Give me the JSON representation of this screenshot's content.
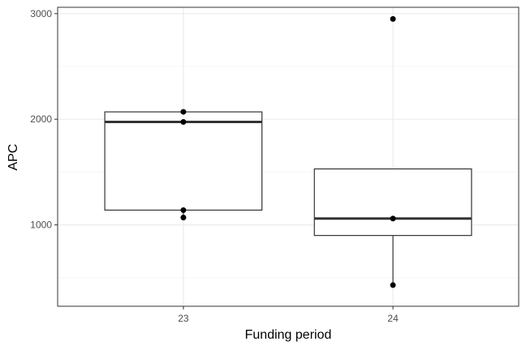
{
  "chart_data": {
    "type": "boxplot",
    "title": "",
    "xlabel": "Funding period",
    "ylabel": "APC",
    "categories": [
      "23",
      "24"
    ],
    "boxes": [
      {
        "category": "23",
        "min": 1070,
        "q1": 1140,
        "median": 1975,
        "q3": 2070,
        "max": 2070
      },
      {
        "category": "24",
        "min": 430,
        "q1": 900,
        "median": 1060,
        "q3": 1530,
        "max": 1530,
        "outliers": [
          2950
        ]
      }
    ],
    "points": [
      {
        "category": "23",
        "y": 2070
      },
      {
        "category": "23",
        "y": 1975
      },
      {
        "category": "23",
        "y": 1140
      },
      {
        "category": "23",
        "y": 1070
      },
      {
        "category": "24",
        "y": 2950
      },
      {
        "category": "24",
        "y": 1060
      },
      {
        "category": "24",
        "y": 430
      }
    ],
    "yticks": [
      1000,
      2000,
      3000
    ],
    "ylim": [
      230,
      3060
    ],
    "grid": true,
    "theme": "bw",
    "colors": {
      "box_line": "#333333",
      "point": "#000000",
      "grid_major": "#ebebeb",
      "grid_minor": "#f4f4f4",
      "panel_border": "#333333"
    }
  }
}
